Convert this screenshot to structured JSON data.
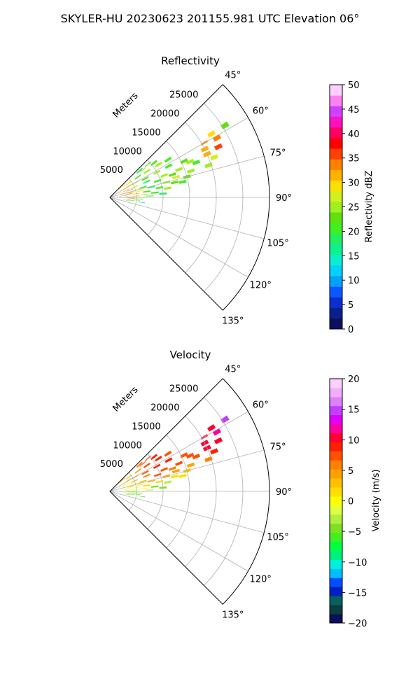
{
  "suptitle": "SKYLER-HU  20230623  201155.981 UTC Elevation 06°",
  "chart_data": [
    {
      "type": "heatmap",
      "title": "Reflectivity",
      "radial_label": "Meters",
      "radial_ticks": [
        "5000",
        "10000",
        "15000",
        "20000",
        "25000"
      ],
      "radial_tick_values": [
        5000,
        10000,
        15000,
        20000,
        25000
      ],
      "rmax": 30000,
      "theta_ticks": [
        "45°",
        "60°",
        "75°",
        "90°",
        "105°",
        "120°",
        "135°"
      ],
      "theta_tick_values": [
        45,
        60,
        75,
        90,
        105,
        120,
        135
      ],
      "theta_range": [
        45,
        135
      ],
      "grid": true,
      "colorbar": {
        "label": "Reflectivity dBZ",
        "range": [
          0,
          50
        ],
        "ticks": [
          "0",
          "5",
          "10",
          "15",
          "20",
          "25",
          "30",
          "35",
          "40",
          "45",
          "50"
        ],
        "tick_values": [
          0,
          5,
          10,
          15,
          20,
          25,
          30,
          35,
          40,
          45,
          50
        ],
        "colors": [
          "#0b0f5c",
          "#0a1f8a",
          "#0c2fd0",
          "#0a58ff",
          "#08a0ff",
          "#06d0ff",
          "#08f0d0",
          "#10f090",
          "#20f060",
          "#40f020",
          "#60e010",
          "#a0f020",
          "#d0f020",
          "#ffe000",
          "#ffb000",
          "#ff8000",
          "#ff4000",
          "#ff0000",
          "#ff0060",
          "#ff10c0",
          "#d040ff",
          "#ff80f0",
          "#ffd0ff"
        ]
      },
      "cells": [
        [
          48,
          3000,
          2,
          30
        ],
        [
          48,
          7500,
          2,
          18
        ],
        [
          49,
          9500,
          1,
          22
        ],
        [
          50,
          8000,
          1,
          24
        ],
        [
          52,
          10500,
          2,
          21
        ],
        [
          53,
          4500,
          2,
          30
        ],
        [
          54,
          6500,
          2,
          23
        ],
        [
          55,
          8500,
          2,
          26
        ],
        [
          56,
          11000,
          2,
          24
        ],
        [
          57,
          13000,
          2,
          20
        ],
        [
          58,
          22500,
          2,
          30
        ],
        [
          58,
          25500,
          2,
          22
        ],
        [
          59,
          4000,
          2,
          28
        ],
        [
          60,
          5500,
          2,
          26
        ],
        [
          60,
          20500,
          1,
          33
        ],
        [
          61,
          23000,
          2,
          34
        ],
        [
          62,
          7500,
          2,
          22
        ],
        [
          62,
          10000,
          2,
          24
        ],
        [
          62,
          12500,
          2,
          20
        ],
        [
          63,
          20000,
          2,
          32
        ],
        [
          64,
          15500,
          2,
          22
        ],
        [
          65,
          22500,
          2,
          36
        ],
        [
          66,
          16500,
          2,
          24
        ],
        [
          66,
          20000,
          2,
          31
        ],
        [
          66,
          3500,
          1,
          33
        ],
        [
          67,
          2500,
          2,
          30
        ],
        [
          67,
          5000,
          2,
          27
        ],
        [
          67,
          7500,
          2,
          18
        ],
        [
          68,
          11000,
          2,
          24
        ],
        [
          68,
          14000,
          2,
          26
        ],
        [
          68,
          17500,
          2,
          21
        ],
        [
          69,
          21000,
          2,
          27
        ],
        [
          70,
          12500,
          2,
          22
        ],
        [
          70,
          4000,
          1,
          35
        ],
        [
          71,
          9500,
          2,
          20
        ],
        [
          72,
          16000,
          2,
          24
        ],
        [
          72,
          19500,
          2,
          26
        ],
        [
          73,
          6500,
          2,
          21
        ],
        [
          73,
          13000,
          2,
          28
        ],
        [
          74,
          2500,
          1,
          33
        ],
        [
          74,
          5500,
          1,
          30
        ],
        [
          75,
          11000,
          2,
          24
        ],
        [
          75,
          15000,
          2,
          23
        ],
        [
          76,
          8000,
          2,
          18
        ],
        [
          77,
          4000,
          2,
          26
        ],
        [
          77,
          12500,
          2,
          22
        ],
        [
          78,
          6000,
          1,
          28
        ],
        [
          78,
          14000,
          2,
          20
        ],
        [
          79,
          9500,
          2,
          21
        ],
        [
          80,
          3500,
          1,
          36
        ],
        [
          81,
          7000,
          2,
          22
        ],
        [
          81,
          11000,
          2,
          25
        ],
        [
          82,
          5000,
          1,
          31
        ],
        [
          83,
          2500,
          1,
          35
        ],
        [
          84,
          8500,
          2,
          20
        ],
        [
          85,
          6500,
          1,
          24
        ],
        [
          86,
          3500,
          1,
          30
        ],
        [
          86,
          10000,
          2,
          18
        ],
        [
          87,
          5000,
          1,
          32
        ],
        [
          88,
          7500,
          1,
          20
        ],
        [
          89,
          4500,
          1,
          28
        ],
        [
          90,
          6000,
          1,
          22
        ],
        [
          91,
          2500,
          1,
          34
        ],
        [
          92,
          4000,
          1,
          42
        ],
        [
          93,
          5500,
          1,
          22
        ],
        [
          95,
          3500,
          1,
          28
        ],
        [
          96,
          5000,
          1,
          24
        ],
        [
          98,
          4000,
          1,
          20
        ],
        [
          99,
          6000,
          1,
          12
        ],
        [
          100,
          3000,
          1,
          18
        ]
      ]
    },
    {
      "type": "heatmap",
      "title": "Velocity",
      "radial_label": "Meters",
      "radial_ticks": [
        "5000",
        "10000",
        "15000",
        "20000",
        "25000"
      ],
      "radial_tick_values": [
        5000,
        10000,
        15000,
        20000,
        25000
      ],
      "rmax": 30000,
      "theta_ticks": [
        "45°",
        "60°",
        "75°",
        "90°",
        "105°",
        "120°",
        "135°"
      ],
      "theta_tick_values": [
        45,
        60,
        75,
        90,
        105,
        120,
        135
      ],
      "theta_range": [
        45,
        135
      ],
      "grid": true,
      "colorbar": {
        "label": "Velocity (m/s)",
        "range": [
          -20,
          20
        ],
        "ticks": [
          "−20",
          "−15",
          "−10",
          "−5",
          "0",
          "5",
          "10",
          "15",
          "20"
        ],
        "tick_values": [
          -20,
          -15,
          -10,
          -5,
          0,
          5,
          10,
          15,
          20
        ],
        "colors": [
          "#0b0f5c",
          "#0a3f3f",
          "#08605a",
          "#0020c0",
          "#0050ff",
          "#00c0ff",
          "#00f0e0",
          "#00f080",
          "#00ff40",
          "#40f020",
          "#80e020",
          "#b0f040",
          "#e0ff40",
          "#ffff00",
          "#ffe000",
          "#ffc000",
          "#ffa000",
          "#ff8000",
          "#ff5000",
          "#ff2000",
          "#ff0030",
          "#ff00a0",
          "#e000ff",
          "#c040ff",
          "#e080ff",
          "#f0b0ff",
          "#ffd0ff"
        ]
      },
      "cells": [
        [
          48,
          3000,
          2,
          4
        ],
        [
          48,
          7500,
          2,
          6
        ],
        [
          49,
          9500,
          1,
          7
        ],
        [
          50,
          8000,
          1,
          8
        ],
        [
          52,
          10500,
          2,
          9
        ],
        [
          53,
          4500,
          2,
          3
        ],
        [
          54,
          6500,
          2,
          5
        ],
        [
          55,
          8500,
          2,
          8
        ],
        [
          56,
          11000,
          2,
          9
        ],
        [
          57,
          13000,
          2,
          8
        ],
        [
          58,
          22500,
          2,
          11
        ],
        [
          58,
          25500,
          2,
          15
        ],
        [
          59,
          4000,
          2,
          3
        ],
        [
          60,
          5500,
          2,
          4
        ],
        [
          60,
          20500,
          1,
          10
        ],
        [
          61,
          23000,
          2,
          12
        ],
        [
          62,
          7500,
          2,
          7
        ],
        [
          62,
          10000,
          2,
          9
        ],
        [
          62,
          12500,
          2,
          9
        ],
        [
          63,
          20000,
          2,
          11
        ],
        [
          64,
          15500,
          2,
          8
        ],
        [
          65,
          22500,
          2,
          10
        ],
        [
          66,
          16500,
          2,
          8
        ],
        [
          66,
          20000,
          2,
          10
        ],
        [
          66,
          3500,
          1,
          2
        ],
        [
          67,
          2500,
          2,
          1
        ],
        [
          67,
          5000,
          2,
          3
        ],
        [
          67,
          7500,
          2,
          6
        ],
        [
          68,
          11000,
          2,
          8
        ],
        [
          68,
          14000,
          2,
          7
        ],
        [
          68,
          17500,
          2,
          7
        ],
        [
          69,
          21000,
          2,
          9
        ],
        [
          70,
          12500,
          2,
          6
        ],
        [
          70,
          4000,
          1,
          2
        ],
        [
          71,
          9500,
          2,
          7
        ],
        [
          72,
          16000,
          2,
          5
        ],
        [
          72,
          19500,
          2,
          6
        ],
        [
          73,
          6500,
          2,
          3
        ],
        [
          73,
          13000,
          2,
          5
        ],
        [
          74,
          2500,
          1,
          0
        ],
        [
          74,
          5500,
          1,
          2
        ],
        [
          75,
          11000,
          2,
          4
        ],
        [
          75,
          15000,
          2,
          3
        ],
        [
          76,
          8000,
          2,
          3
        ],
        [
          77,
          4000,
          2,
          1
        ],
        [
          77,
          12500,
          2,
          2
        ],
        [
          78,
          6000,
          1,
          1
        ],
        [
          78,
          14000,
          2,
          2
        ],
        [
          79,
          9500,
          2,
          1
        ],
        [
          80,
          3500,
          1,
          0
        ],
        [
          81,
          7000,
          2,
          1
        ],
        [
          81,
          11000,
          2,
          -3
        ],
        [
          82,
          5000,
          1,
          0
        ],
        [
          83,
          2500,
          1,
          -1
        ],
        [
          84,
          8500,
          2,
          -4
        ],
        [
          85,
          6500,
          1,
          0
        ],
        [
          86,
          3500,
          1,
          -1
        ],
        [
          86,
          10000,
          2,
          -4
        ],
        [
          87,
          5000,
          1,
          -2
        ],
        [
          88,
          7500,
          1,
          -3
        ],
        [
          89,
          4500,
          1,
          -2
        ],
        [
          90,
          6000,
          1,
          -3
        ],
        [
          91,
          2500,
          1,
          -3
        ],
        [
          92,
          4000,
          1,
          -4
        ],
        [
          93,
          5500,
          1,
          -5
        ],
        [
          95,
          3500,
          1,
          -5
        ],
        [
          96,
          5000,
          1,
          -6
        ],
        [
          98,
          4000,
          1,
          -5
        ],
        [
          99,
          6000,
          1,
          -6
        ],
        [
          100,
          3000,
          1,
          -4
        ]
      ]
    }
  ]
}
